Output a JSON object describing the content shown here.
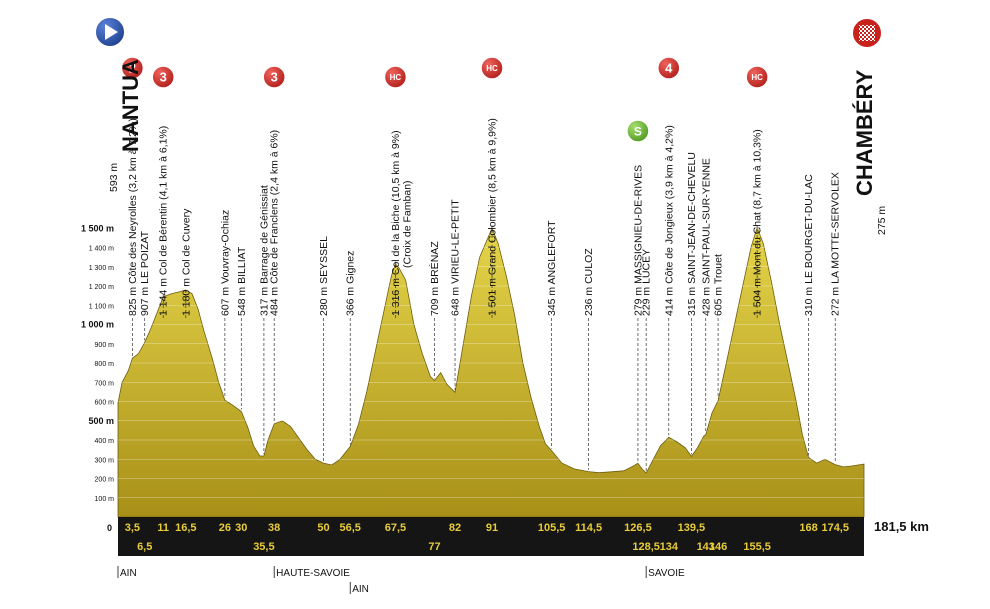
{
  "chart_data": {
    "type": "area",
    "title": "",
    "x_unit": "km",
    "y_unit": "m",
    "xlim": [
      0,
      181.5
    ],
    "ylim": [
      0,
      1600
    ],
    "start": {
      "name": "NANTUA",
      "elevation": "593 m"
    },
    "finish": {
      "name": "CHAMBÉRY",
      "elevation": "275 m"
    },
    "distance_label": "181,5 km",
    "start_km_label": "0",
    "y_ticks": [
      {
        "v": 100,
        "label": "100 m",
        "bold": false
      },
      {
        "v": 200,
        "label": "200 m",
        "bold": false
      },
      {
        "v": 300,
        "label": "300 m",
        "bold": false
      },
      {
        "v": 400,
        "label": "400 m",
        "bold": false
      },
      {
        "v": 500,
        "label": "500 m",
        "bold": true
      },
      {
        "v": 600,
        "label": "600 m",
        "bold": false
      },
      {
        "v": 700,
        "label": "700 m",
        "bold": false
      },
      {
        "v": 800,
        "label": "800 m",
        "bold": false
      },
      {
        "v": 900,
        "label": "900 m",
        "bold": false
      },
      {
        "v": 1000,
        "label": "1 000 m",
        "bold": true
      },
      {
        "v": 1100,
        "label": "1 100 m",
        "bold": false
      },
      {
        "v": 1200,
        "label": "1 200 m",
        "bold": false
      },
      {
        "v": 1300,
        "label": "1 300 m",
        "bold": false
      },
      {
        "v": 1400,
        "label": "1 400 m",
        "bold": false
      },
      {
        "v": 1500,
        "label": "1 500 m",
        "bold": true
      }
    ],
    "profile": [
      [
        0,
        593
      ],
      [
        1,
        700
      ],
      [
        2.5,
        760
      ],
      [
        3.5,
        825
      ],
      [
        5,
        850
      ],
      [
        6.5,
        907
      ],
      [
        8,
        980
      ],
      [
        9.5,
        1060
      ],
      [
        11,
        1144
      ],
      [
        13,
        1160
      ],
      [
        15,
        1170
      ],
      [
        16.5,
        1180
      ],
      [
        18,
        1160
      ],
      [
        19.5,
        1080
      ],
      [
        21,
        960
      ],
      [
        23,
        820
      ],
      [
        24.5,
        700
      ],
      [
        26,
        607
      ],
      [
        28,
        580
      ],
      [
        30,
        548
      ],
      [
        31.5,
        470
      ],
      [
        33,
        370
      ],
      [
        34.5,
        317
      ],
      [
        35.5,
        317
      ],
      [
        36.5,
        400
      ],
      [
        38,
        484
      ],
      [
        40,
        500
      ],
      [
        42,
        470
      ],
      [
        44,
        410
      ],
      [
        46,
        350
      ],
      [
        48,
        300
      ],
      [
        50,
        280
      ],
      [
        52,
        270
      ],
      [
        54,
        300
      ],
      [
        56.5,
        366
      ],
      [
        58.5,
        480
      ],
      [
        60.5,
        650
      ],
      [
        62.5,
        850
      ],
      [
        64.5,
        1050
      ],
      [
        66.5,
        1250
      ],
      [
        67.5,
        1316
      ],
      [
        68.5,
        1290
      ],
      [
        70,
        1230
      ],
      [
        72,
        1000
      ],
      [
        74,
        850
      ],
      [
        76,
        730
      ],
      [
        77,
        709
      ],
      [
        78.5,
        750
      ],
      [
        80,
        690
      ],
      [
        82,
        648
      ],
      [
        84,
        900
      ],
      [
        86,
        1150
      ],
      [
        88,
        1350
      ],
      [
        90,
        1450
      ],
      [
        91,
        1501
      ],
      [
        92.5,
        1420
      ],
      [
        94.5,
        1250
      ],
      [
        96.5,
        1050
      ],
      [
        98.5,
        800
      ],
      [
        100.5,
        620
      ],
      [
        102.5,
        470
      ],
      [
        104,
        380
      ],
      [
        105.5,
        345
      ],
      [
        108,
        280
      ],
      [
        111,
        250
      ],
      [
        114.5,
        236
      ],
      [
        117,
        230
      ],
      [
        120,
        235
      ],
      [
        123,
        240
      ],
      [
        125,
        260
      ],
      [
        126.5,
        279
      ],
      [
        127.5,
        250
      ],
      [
        128.5,
        229
      ],
      [
        130,
        290
      ],
      [
        132,
        370
      ],
      [
        134,
        414
      ],
      [
        136,
        390
      ],
      [
        138,
        360
      ],
      [
        139.5,
        315
      ],
      [
        141,
        360
      ],
      [
        142.5,
        420
      ],
      [
        143,
        428
      ],
      [
        144.5,
        540
      ],
      [
        146,
        605
      ],
      [
        148,
        800
      ],
      [
        150,
        1000
      ],
      [
        152,
        1200
      ],
      [
        154,
        1400
      ],
      [
        155.5,
        1504
      ],
      [
        157,
        1420
      ],
      [
        159,
        1220
      ],
      [
        161,
        1000
      ],
      [
        163,
        800
      ],
      [
        165,
        600
      ],
      [
        166.5,
        430
      ],
      [
        168,
        310
      ],
      [
        170,
        280
      ],
      [
        172,
        300
      ],
      [
        174.5,
        272
      ],
      [
        176.5,
        260
      ],
      [
        178.5,
        265
      ],
      [
        180,
        270
      ],
      [
        181.5,
        275
      ]
    ],
    "km_labels_top": [
      "3,5",
      "11",
      "16,5",
      "26",
      "30",
      "38",
      "50",
      "56,5",
      "67,5",
      "82",
      "91",
      "105,5",
      "114,5",
      "126,5",
      "139,5",
      "168",
      "174,5"
    ],
    "km_labels_top_x": [
      3.5,
      11,
      16.5,
      26,
      30,
      38,
      50,
      56.5,
      67.5,
      82,
      91,
      105.5,
      114.5,
      126.5,
      139.5,
      168,
      174.5
    ],
    "km_labels_bottom": [
      "6,5",
      "35,5",
      "77",
      "128,5",
      "134",
      "143",
      "146",
      "155,5"
    ],
    "km_labels_bottom_x": [
      6.5,
      35.5,
      77,
      128.5,
      134,
      143,
      146,
      155.5
    ],
    "waypoints": [
      {
        "km": 3.5,
        "elev": 825,
        "label": "825 m Côte des Neyrolles (3,2 km à 7,2%)"
      },
      {
        "km": 6.5,
        "elev": 907,
        "label": "907 m LE POIZAT"
      },
      {
        "km": 11,
        "elev": 1144,
        "label": "1 144 m Col de Bérentin (4,1 km à 6,1%)"
      },
      {
        "km": 16.5,
        "elev": 1180,
        "label": "1 180 m Col de Cuvery"
      },
      {
        "km": 26,
        "elev": 607,
        "label": "607 m Vouvray-Ochiaz"
      },
      {
        "km": 30,
        "elev": 548,
        "label": "548 m BILLIAT"
      },
      {
        "km": 35.5,
        "elev": 317,
        "label": "317 m Barrage de Génissiat"
      },
      {
        "km": 38,
        "elev": 484,
        "label": "484 m Côte de Franclens (2,4 km à 6%)"
      },
      {
        "km": 50,
        "elev": 280,
        "label": "280 m SEYSSEL"
      },
      {
        "km": 56.5,
        "elev": 366,
        "label": "366 m Gignez"
      },
      {
        "km": 67.5,
        "elev": 1316,
        "label": "1 316 m Col de la Biche (10,5 km à 9%)",
        "label2": "(Croix de Famban)"
      },
      {
        "km": 77,
        "elev": 709,
        "label": "709 m BRÉNAZ"
      },
      {
        "km": 82,
        "elev": 648,
        "label": "648 m VIRIEU-LE-PETIT"
      },
      {
        "km": 91,
        "elev": 1501,
        "label": "1 501 m Grand Colombier (8,5 km à 9,9%)"
      },
      {
        "km": 105.5,
        "elev": 345,
        "label": "345 m ANGLEFORT"
      },
      {
        "km": 114.5,
        "elev": 236,
        "label": "236 m CULOZ"
      },
      {
        "km": 126.5,
        "elev": 279,
        "label": "279 m MASSIGNIEU-DE-RIVES"
      },
      {
        "km": 128.5,
        "elev": 229,
        "label": "229 m LUCEY"
      },
      {
        "km": 134,
        "elev": 414,
        "label": "414 m Côte de Jongieux (3,9 km à 4,2%)"
      },
      {
        "km": 139.5,
        "elev": 315,
        "label": "315 m SAINT-JEAN-DE-CHEVELU"
      },
      {
        "km": 143,
        "elev": 428,
        "label": "428 m SAINT-PAUL-SUR-YENNE"
      },
      {
        "km": 146,
        "elev": 605,
        "label": "605 m Trouet"
      },
      {
        "km": 155.5,
        "elev": 1504,
        "label": "1 504 m Mont du Chat (8,7 km à 10,3%)"
      },
      {
        "km": 168,
        "elev": 310,
        "label": "310 m LE BOURGET-DU-LAC"
      },
      {
        "km": 174.5,
        "elev": 272,
        "label": "272 m LA MOTTE-SERVOLEX"
      }
    ],
    "climb_badges": [
      {
        "km": 3.5,
        "text": "2",
        "level": "high"
      },
      {
        "km": 11,
        "text": "3",
        "level": "mid"
      },
      {
        "km": 38,
        "text": "3",
        "level": "mid"
      },
      {
        "km": 67.5,
        "text": "HC",
        "level": "mid"
      },
      {
        "km": 91,
        "text": "HC",
        "level": "high"
      },
      {
        "km": 134,
        "text": "4",
        "level": "high"
      },
      {
        "km": 155.5,
        "text": "HC",
        "level": "mid"
      }
    ],
    "sprint_badge": {
      "km": 126.5,
      "text": "S"
    },
    "regions": [
      {
        "km": 0,
        "label": "AIN",
        "row": 0
      },
      {
        "km": 38,
        "label": "HAUTE-SAVOIE",
        "row": 0
      },
      {
        "km": 56.5,
        "label": "AIN",
        "row": 1
      },
      {
        "km": 128.5,
        "label": "SAVOIE",
        "row": 0
      }
    ],
    "colors": {
      "fill_top": "#e6d54a",
      "fill_bottom": "#a89018",
      "band": "#151515",
      "km_text": "#e8cc3a",
      "badge_red": "#d0312d",
      "badge_green": "#7cc242",
      "start_blue": "#2a4fa8"
    }
  }
}
